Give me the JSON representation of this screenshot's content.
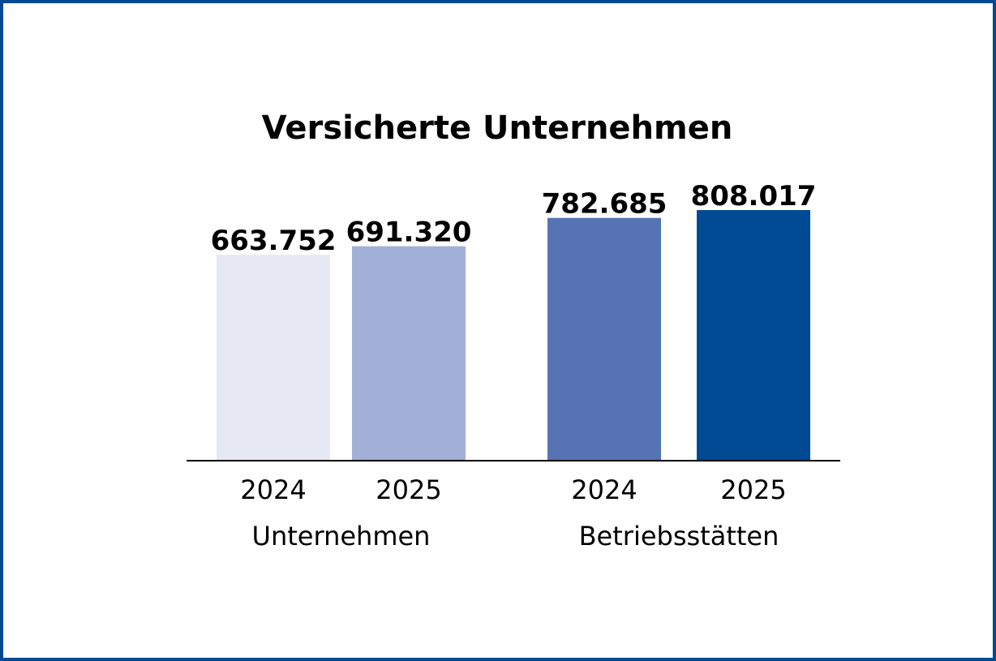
{
  "chart_data": {
    "type": "bar",
    "title": "Versicherte Unternehmen",
    "xlabel": "",
    "ylabel": "",
    "ylim": [
      0,
      808017
    ],
    "grid": false,
    "legend": "none",
    "groups": [
      {
        "label": "Unternehmen",
        "categories": [
          "2024",
          "2025"
        ]
      },
      {
        "label": "Betriebsstätten",
        "categories": [
          "2024",
          "2025"
        ]
      }
    ],
    "bars": [
      {
        "group": "Unternehmen",
        "category": "2024",
        "value": 663752,
        "value_label": "663.752",
        "color": "#e6e9f4"
      },
      {
        "group": "Unternehmen",
        "category": "2025",
        "value": 691320,
        "value_label": "691.320",
        "color": "#a2afd7"
      },
      {
        "group": "Betriebsstätten",
        "category": "2024",
        "value": 782685,
        "value_label": "782.685",
        "color": "#5674b4"
      },
      {
        "group": "Betriebsstätten",
        "category": "2025",
        "value": 808017,
        "value_label": "808.017",
        "color": "#004a94"
      }
    ]
  },
  "colors": {
    "frame": "#004a94",
    "axis": "#000000",
    "text": "#000000"
  }
}
